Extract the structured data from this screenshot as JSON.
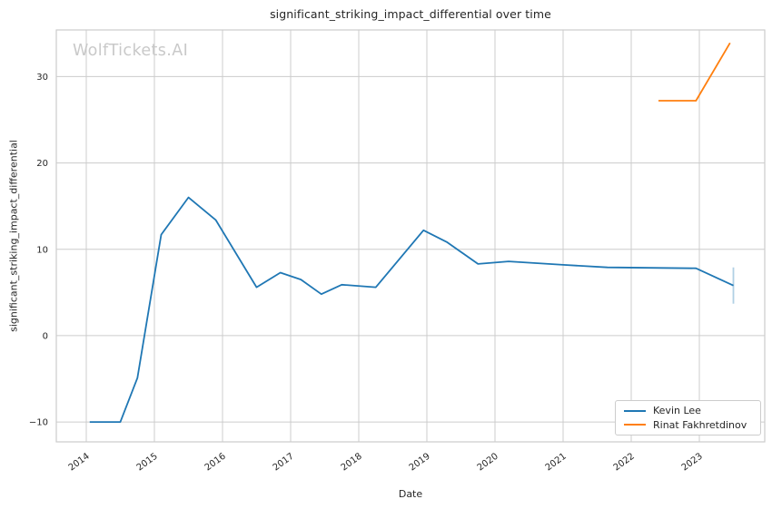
{
  "watermark": {
    "text": "WolfTickets.AI",
    "color": "#c9c9c9"
  },
  "colors": {
    "background": "#ffffff",
    "grid": "#cccccc",
    "spine": "#cccccc",
    "text": "#262626",
    "series_blue": "#1f77b4",
    "series_orange": "#ff7f0e"
  },
  "chart_data": {
    "type": "line",
    "title": "significant_striking_impact_differential over time",
    "xlabel": "Date",
    "ylabel": "significant_striking_impact_differential",
    "xlim": [
      2013.56,
      2023.96
    ],
    "ylim": [
      -12.3,
      35.4
    ],
    "x_ticks": [
      2014,
      2015,
      2016,
      2017,
      2018,
      2019,
      2020,
      2021,
      2022,
      2023
    ],
    "y_ticks": [
      -10,
      0,
      10,
      20,
      30
    ],
    "grid": true,
    "legend_position": "lower right",
    "series": [
      {
        "name": "Kevin Lee",
        "color": "#1f77b4",
        "x": [
          2014.05,
          2014.5,
          2014.75,
          2015.1,
          2015.5,
          2015.9,
          2016.5,
          2016.85,
          2017.15,
          2017.45,
          2017.75,
          2018.25,
          2018.95,
          2019.3,
          2019.75,
          2020.2,
          2021.0,
          2021.65,
          2022.95,
          2023.5
        ],
        "y": [
          -10,
          -10,
          -4.9,
          11.7,
          16.0,
          13.4,
          5.6,
          7.3,
          6.5,
          4.8,
          5.9,
          5.6,
          12.2,
          10.8,
          8.3,
          8.6,
          8.2,
          7.9,
          7.8,
          5.8
        ]
      },
      {
        "name": "Rinat Fakhretdinov",
        "color": "#ff7f0e",
        "x": [
          2022.4,
          2022.95,
          2023.45
        ],
        "y": [
          27.2,
          27.2,
          33.9
        ]
      }
    ],
    "error_bars": [
      {
        "series": "Kevin Lee",
        "x": 2023.5,
        "y_low": 3.7,
        "y_high": 7.9,
        "color": "#1f77b4",
        "opacity": 0.35
      }
    ]
  }
}
